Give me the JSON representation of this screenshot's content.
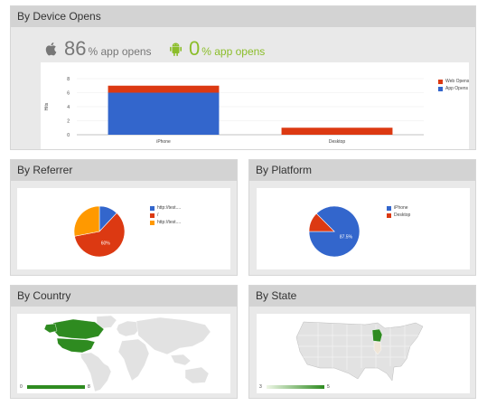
{
  "device": {
    "title": "By Device Opens",
    "ios_pct": "86",
    "ios_label": "% app opens",
    "android_pct": "0",
    "android_label": "% app opens",
    "colors": {
      "ios": "#777777",
      "android": "#8bbd2a"
    }
  },
  "referrer": {
    "title": "By Referrer",
    "legend": [
      {
        "label": "http://test....",
        "color": "#3366cc"
      },
      {
        "label": "/",
        "color": "#dc3912"
      },
      {
        "label": "http://test....",
        "color": "#ff9900"
      }
    ],
    "slice_label": "60%"
  },
  "platform": {
    "title": "By Platform",
    "legend": [
      {
        "label": "iPhone",
        "color": "#3366cc"
      },
      {
        "label": "Desktop",
        "color": "#dc3912"
      }
    ],
    "slice_label": "87.5%"
  },
  "country": {
    "title": "By Country",
    "scale_min": "0",
    "scale_max": "8"
  },
  "state": {
    "title": "By State",
    "scale_min": "3",
    "scale_max": "5"
  },
  "chart_data": [
    {
      "type": "bar",
      "categories": [
        "iPhone",
        "Desktop"
      ],
      "series": [
        {
          "name": "App Opens",
          "values": [
            6,
            0
          ],
          "color": "#3366cc"
        },
        {
          "name": "Web Opens",
          "values": [
            1,
            1
          ],
          "color": "#dc3912"
        }
      ],
      "stacked": true,
      "ylabel": "Hits",
      "yticks": [
        0,
        2,
        4,
        6,
        8
      ],
      "ylim": [
        0,
        8
      ],
      "legend_order": [
        "Web Opens",
        "App Opens"
      ],
      "legend": "right"
    },
    {
      "type": "pie",
      "slices": [
        {
          "label": "http://test....",
          "value": 12,
          "color": "#3366cc"
        },
        {
          "label": "/",
          "value": 60,
          "color": "#dc3912"
        },
        {
          "label": "http://test....",
          "value": 28,
          "color": "#ff9900"
        }
      ],
      "legend": "right"
    },
    {
      "type": "pie",
      "slices": [
        {
          "label": "iPhone",
          "value": 87.5,
          "color": "#3366cc"
        },
        {
          "label": "Desktop",
          "value": 12.5,
          "color": "#dc3912"
        }
      ],
      "legend": "right"
    }
  ]
}
